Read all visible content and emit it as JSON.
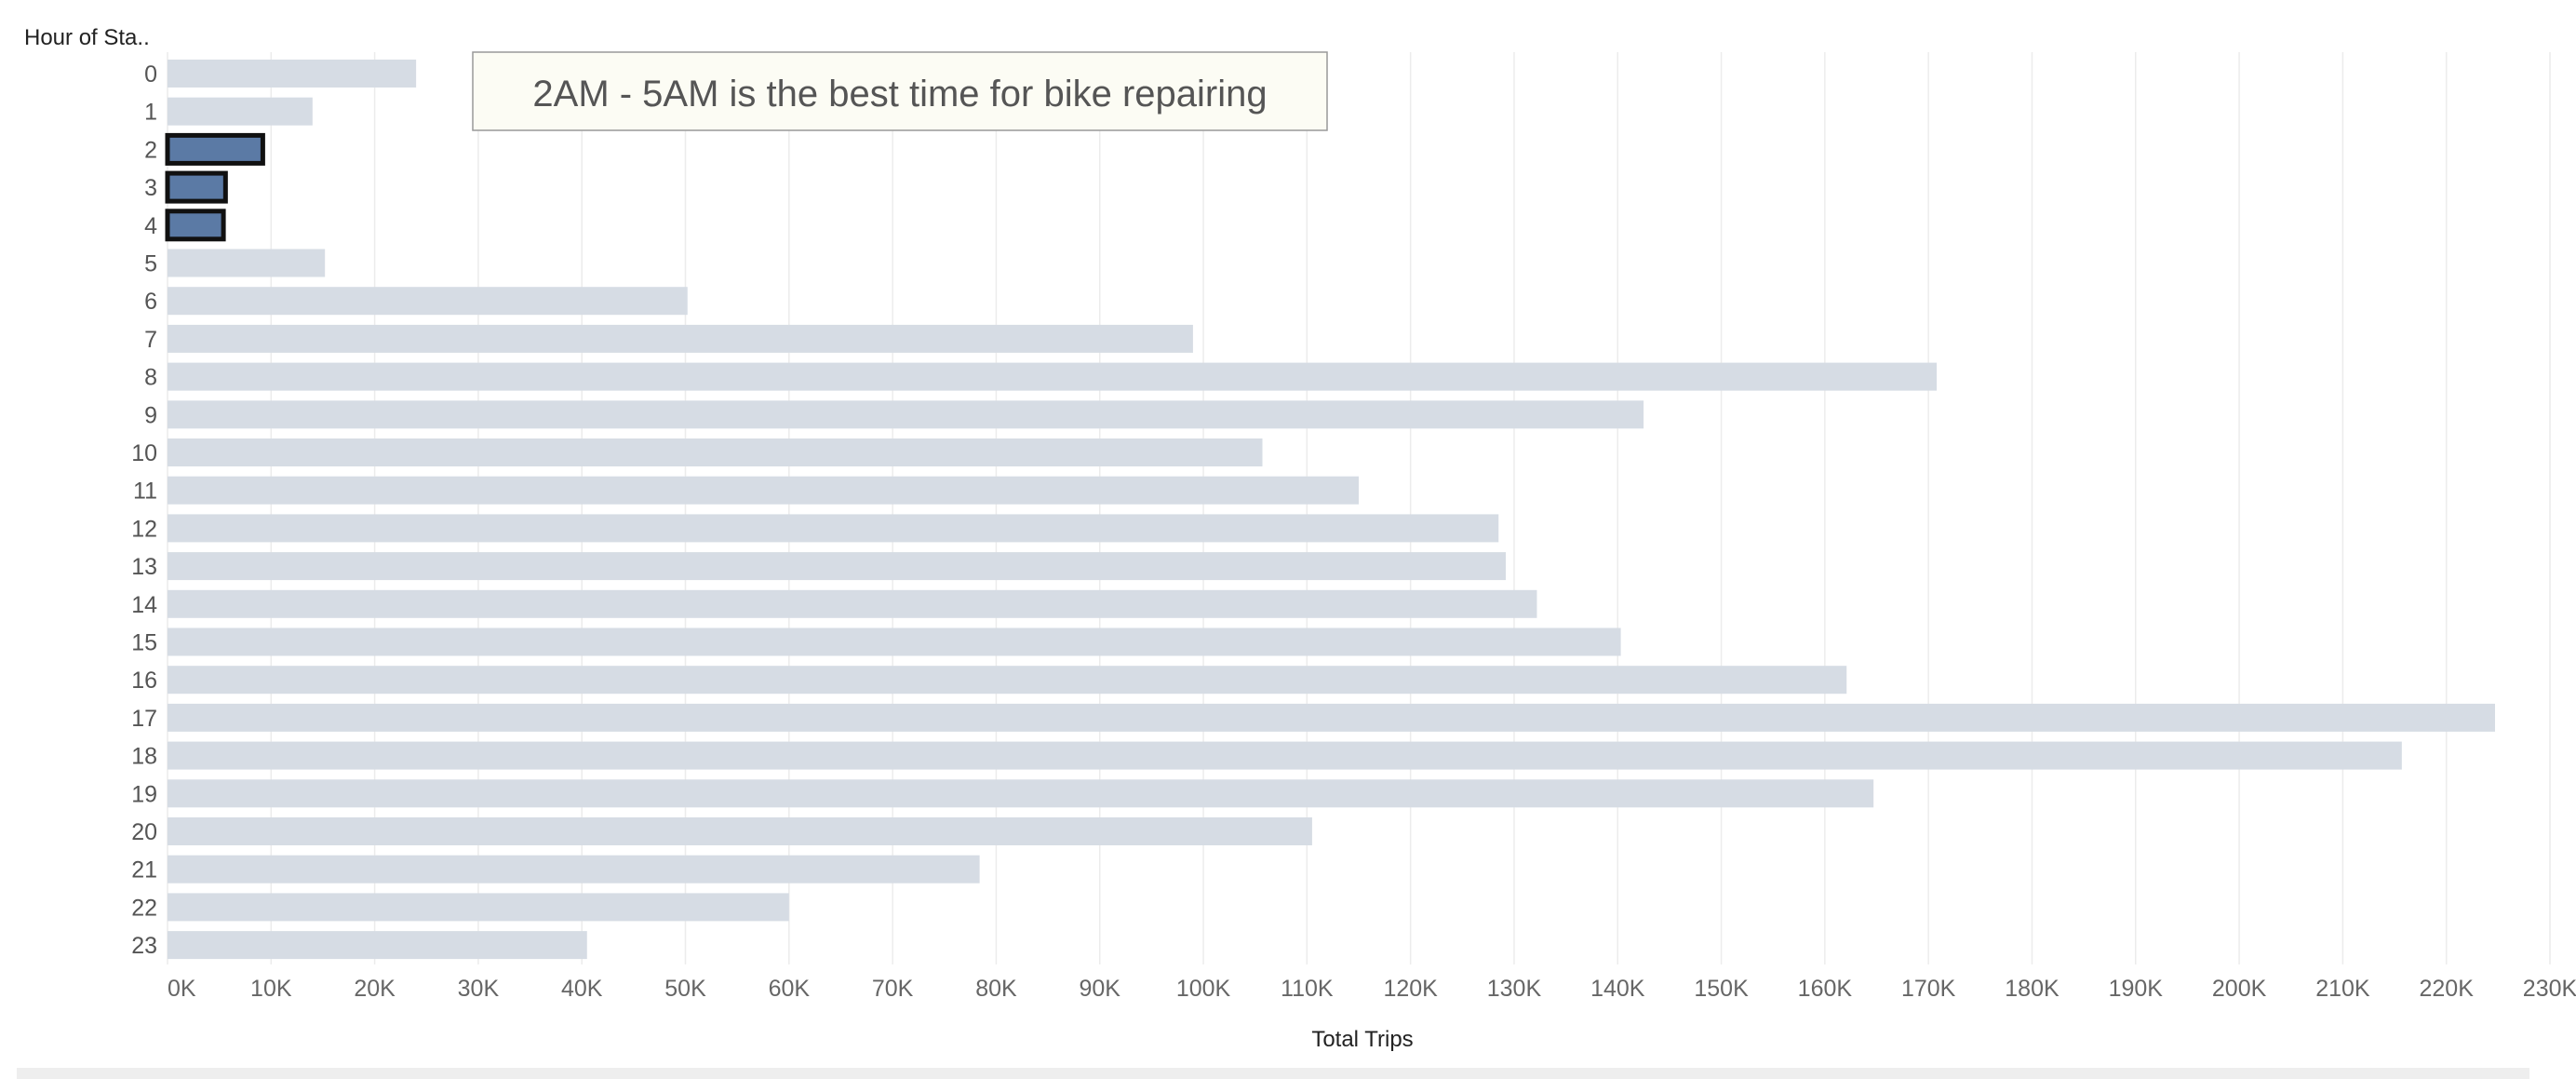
{
  "chart_data": {
    "type": "bar",
    "orientation": "horizontal",
    "row_header": "Hour of Sta..",
    "xlabel": "Total Trips",
    "xlim": [
      0,
      230000
    ],
    "x_ticks": [
      0,
      10000,
      20000,
      30000,
      40000,
      50000,
      60000,
      70000,
      80000,
      90000,
      100000,
      110000,
      120000,
      130000,
      140000,
      150000,
      160000,
      170000,
      180000,
      190000,
      200000,
      210000,
      220000,
      230000
    ],
    "x_tick_labels": [
      "0K",
      "10K",
      "20K",
      "30K",
      "40K",
      "50K",
      "60K",
      "70K",
      "80K",
      "90K",
      "100K",
      "110K",
      "120K",
      "130K",
      "140K",
      "150K",
      "160K",
      "170K",
      "180K",
      "190K",
      "200K",
      "210K",
      "220K",
      "230K"
    ],
    "grid": "vertical",
    "categories": [
      "0",
      "1",
      "2",
      "3",
      "4",
      "5",
      "6",
      "7",
      "8",
      "9",
      "10",
      "11",
      "12",
      "13",
      "14",
      "15",
      "16",
      "17",
      "18",
      "19",
      "20",
      "21",
      "22",
      "23"
    ],
    "values": [
      24000,
      14000,
      9200,
      5600,
      5400,
      15200,
      50200,
      99000,
      170800,
      142500,
      105700,
      115000,
      128500,
      129200,
      132200,
      140300,
      162100,
      224700,
      215700,
      164700,
      110500,
      78400,
      60000,
      40500
    ],
    "highlighted": [
      "2",
      "3",
      "4"
    ],
    "annotation": "2AM - 5AM is the best time for bike repairing",
    "colors": {
      "bar": "#d6dce4",
      "highlight": "#5b7aa5",
      "highlight_border": "#111111",
      "grid": "#ececec",
      "annotation_fill": "#fcfcf4",
      "annotation_border": "#999999"
    }
  }
}
